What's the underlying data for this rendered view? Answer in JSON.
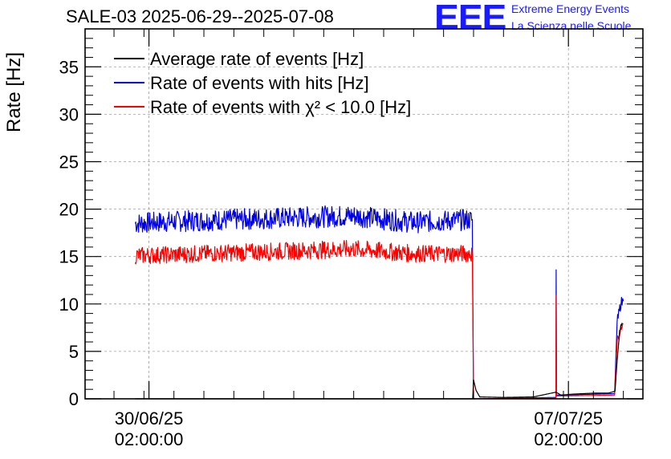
{
  "title": "SALE-03 2025-06-29--2025-07-08",
  "logo": {
    "mark": "EEE",
    "line1": "Extreme Energy Events",
    "line2": "La Scienza nelle Scuole",
    "color": "#1a1aff"
  },
  "chart_data": {
    "type": "line",
    "ylabel": "Rate [Hz]",
    "ylim": [
      0,
      39
    ],
    "yticks": [
      0,
      5,
      10,
      15,
      20,
      25,
      30,
      35
    ],
    "x_range": [
      "2025-06-29 00:25",
      "2025-07-08 07:50"
    ],
    "xticks": [
      {
        "date": "30/06/25",
        "time": "02:00:00"
      },
      {
        "date": "07/07/25",
        "time": "02:00:00"
      }
    ],
    "grid": true,
    "legend_position": "top-left",
    "series": [
      {
        "name": "Average rate of events [Hz]",
        "color": "#000000",
        "points": [
          [
            "2025-06-29 20:30",
            0.0
          ],
          [
            "2025-07-05 11:40",
            0.0
          ],
          [
            "2025-07-05 12:00",
            2.0
          ],
          [
            "2025-07-05 13:00",
            0.9
          ],
          [
            "2025-07-05 14:30",
            0.2
          ],
          [
            "2025-07-06 00:00",
            0.15
          ],
          [
            "2025-07-06 12:00",
            0.2
          ],
          [
            "2025-07-06 21:00",
            0.7
          ],
          [
            "2025-07-06 23:00",
            0.4
          ],
          [
            "2025-07-07 04:00",
            0.5
          ],
          [
            "2025-07-07 12:00",
            0.6
          ],
          [
            "2025-07-07 18:00",
            0.6
          ],
          [
            "2025-07-07 20:40",
            0.8
          ],
          [
            "2025-07-07 21:30",
            4.0
          ],
          [
            "2025-07-07 22:30",
            7.0
          ],
          [
            "2025-07-07 23:30",
            8.0
          ]
        ]
      },
      {
        "name": "Rate of events with hits [Hz]",
        "color": "#0000e6",
        "points": [
          [
            "2025-06-29 20:30",
            18.5
          ],
          [
            "2025-06-30 12:00",
            18.7
          ],
          [
            "2025-07-01 12:00",
            18.9
          ],
          [
            "2025-07-02 12:00",
            19.1
          ],
          [
            "2025-07-03 12:00",
            19.3
          ],
          [
            "2025-07-04 12:00",
            18.6
          ],
          [
            "2025-07-05 11:30",
            18.9
          ],
          [
            "2025-07-05 12:00",
            0.0
          ],
          [
            "2025-07-06 21:00",
            0.15
          ],
          [
            "2025-07-06 21:05",
            13.6
          ],
          [
            "2025-07-06 21:15",
            0.4
          ],
          [
            "2025-07-06 23:30",
            0.4
          ],
          [
            "2025-07-07 20:30",
            0.55
          ],
          [
            "2025-07-07 21:30",
            8.0
          ],
          [
            "2025-07-07 23:00",
            10.1
          ],
          [
            "2025-07-08 00:00",
            10.3
          ]
        ]
      },
      {
        "name": "Rate of events with χ² < 10.0 [Hz]",
        "color": "#ff0000",
        "points": [
          [
            "2025-06-29 20:30",
            15.1
          ],
          [
            "2025-06-30 12:00",
            15.2
          ],
          [
            "2025-07-01 12:00",
            15.4
          ],
          [
            "2025-07-02 12:00",
            15.6
          ],
          [
            "2025-07-03 12:00",
            15.8
          ],
          [
            "2025-07-04 12:00",
            15.3
          ],
          [
            "2025-07-05 11:30",
            15.3
          ],
          [
            "2025-07-05 12:00",
            0.0
          ],
          [
            "2025-07-06 21:00",
            0.1
          ],
          [
            "2025-07-06 21:05",
            10.9
          ],
          [
            "2025-07-06 21:15",
            0.3
          ],
          [
            "2025-07-06 23:30",
            0.3
          ],
          [
            "2025-07-07 20:30",
            0.4
          ],
          [
            "2025-07-07 21:30",
            6.0
          ],
          [
            "2025-07-07 23:00",
            7.6
          ],
          [
            "2025-07-08 00:00",
            7.9
          ]
        ]
      }
    ]
  }
}
